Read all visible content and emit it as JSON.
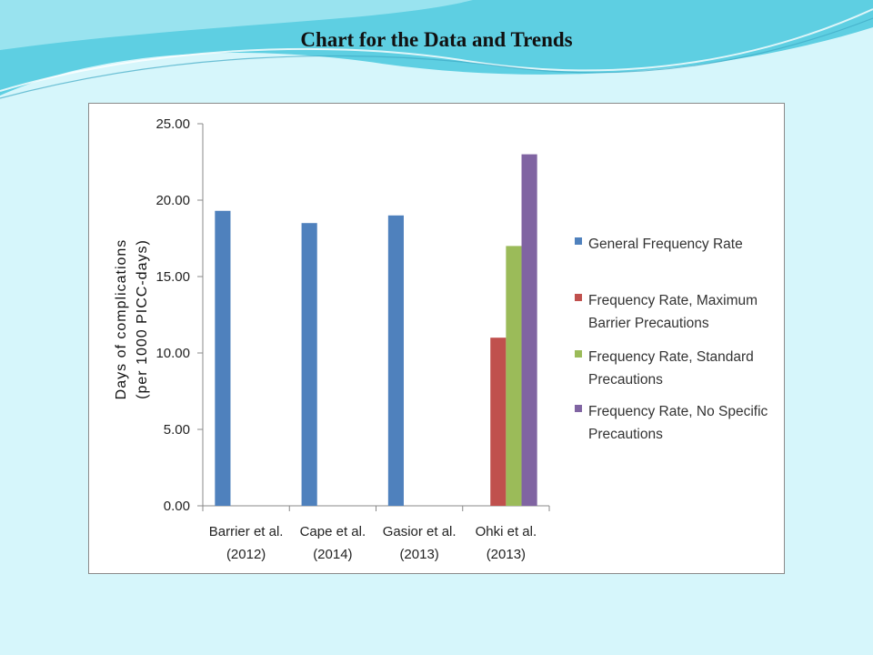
{
  "slide": {
    "title": "Chart for the Data and Trends"
  },
  "colors": {
    "background": "#d6f6fb",
    "wave_dark": "#5ecfe2",
    "wave_light": "#aeeaf3"
  },
  "chart_data": {
    "type": "bar",
    "title": "",
    "xlabel": "",
    "ylabel_lines": [
      "Days  of  complications",
      "(per 1000 PICC-days)"
    ],
    "categories": [
      [
        "Barrier et al.",
        "(2012)"
      ],
      [
        "Cape et al.",
        "(2014)"
      ],
      [
        "Gasior et al.",
        "(2013)"
      ],
      [
        "Ohki et al.",
        "(2013)"
      ]
    ],
    "ylim": [
      0,
      25
    ],
    "yticks": [
      "0.00",
      "5.00",
      "10.00",
      "15.00",
      "20.00",
      "25.00"
    ],
    "grid": false,
    "legend_position": "right",
    "series": [
      {
        "name": [
          "General Frequency Rate"
        ],
        "color": "#4f81bd",
        "values": [
          19.3,
          18.5,
          19.0,
          null
        ]
      },
      {
        "name": [
          "Frequency Rate, Maximum",
          "Barrier Precautions"
        ],
        "color": "#c0504d",
        "values": [
          null,
          null,
          null,
          11.0
        ]
      },
      {
        "name": [
          "Frequency Rate, Standard",
          "Precautions"
        ],
        "color": "#9bbb59",
        "values": [
          null,
          null,
          null,
          17.0
        ]
      },
      {
        "name": [
          "Frequency Rate, No Specific",
          "Precautions"
        ],
        "color": "#8064a2",
        "values": [
          null,
          null,
          null,
          23.0
        ]
      }
    ]
  }
}
